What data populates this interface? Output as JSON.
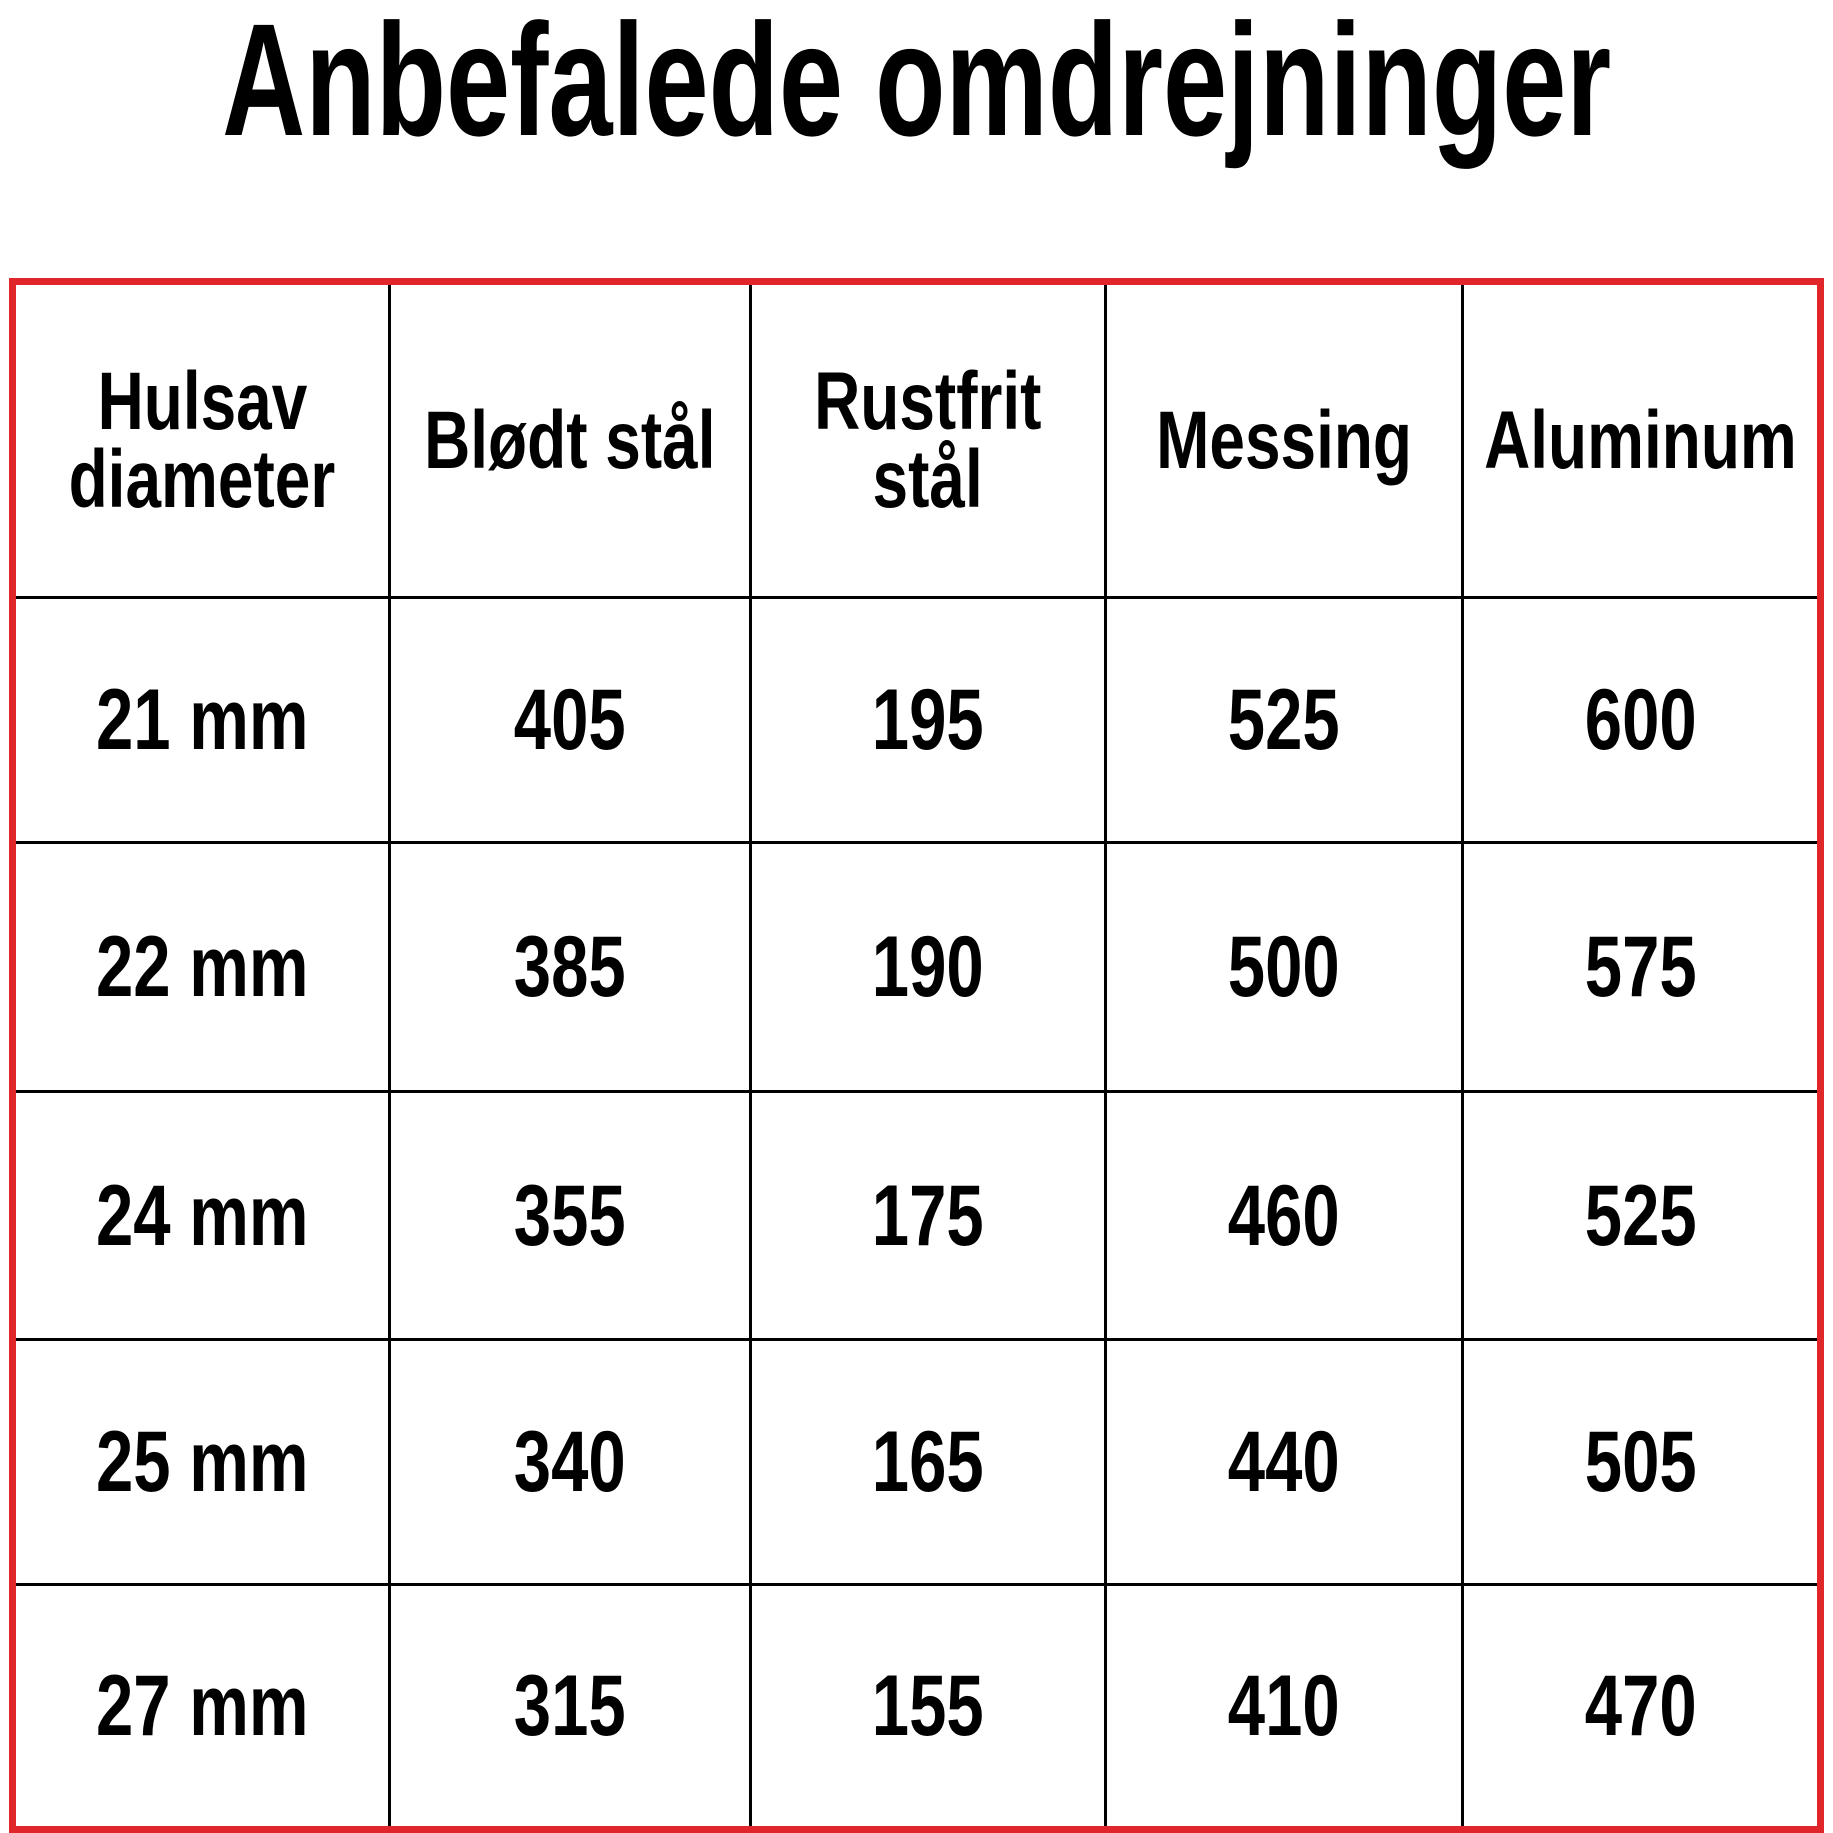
{
  "title": "Anbefalede omdrejninger",
  "table": {
    "header": [
      [
        "Hulsav",
        "diameter"
      ],
      [
        "Blødt stål"
      ],
      [
        "Rustfrit",
        "stål"
      ],
      [
        "Messing"
      ],
      [
        "Aluminum"
      ]
    ],
    "rows": [
      [
        "21 mm",
        405,
        195,
        525,
        600
      ],
      [
        "22 mm",
        385,
        190,
        500,
        575
      ],
      [
        "24 mm",
        355,
        175,
        460,
        525
      ],
      [
        "25 mm",
        340,
        165,
        440,
        505
      ],
      [
        "27 mm",
        315,
        155,
        410,
        470
      ]
    ]
  }
}
